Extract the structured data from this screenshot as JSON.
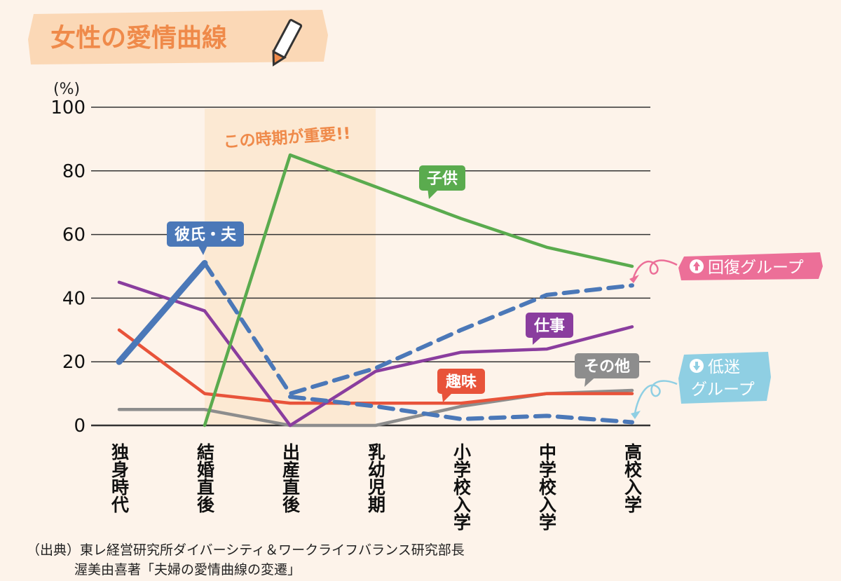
{
  "chart_data": {
    "type": "line",
    "title": "女性の愛情曲線",
    "y_unit": "(%)",
    "ylim": [
      0,
      100
    ],
    "y_ticks": [
      0,
      20,
      40,
      60,
      80,
      100
    ],
    "grid": true,
    "categories": [
      "独身時代",
      "結婚直後",
      "出産直後",
      "乳幼児期",
      "小学校入学",
      "中学校入学",
      "高校入学"
    ],
    "highlight": {
      "from": "結婚直後",
      "to": "乳幼児期",
      "label": "この時期が重要!!"
    },
    "series": [
      {
        "name": "子供",
        "color": "#5aab4e",
        "style": "solid",
        "values": [
          null,
          0,
          85,
          75,
          65,
          56,
          50
        ]
      },
      {
        "name": "彼氏・夫",
        "color": "#4b78b8",
        "style": "solid",
        "values": [
          20,
          51,
          null,
          null,
          null,
          null,
          null
        ]
      },
      {
        "name": "回復グループ",
        "color": "#4b78b8",
        "style": "dashed",
        "values": [
          null,
          51,
          10,
          18,
          30,
          41,
          44
        ]
      },
      {
        "name": "低迷グループ",
        "color": "#4b78b8",
        "style": "dashed",
        "values": [
          null,
          null,
          9,
          6,
          2,
          3,
          1
        ]
      },
      {
        "name": "仕事",
        "color": "#8a3d9e",
        "style": "solid",
        "values": [
          45,
          36,
          0,
          17,
          23,
          24,
          31
        ]
      },
      {
        "name": "趣味",
        "color": "#e8533a",
        "style": "solid",
        "values": [
          30,
          10,
          7,
          7,
          7,
          10,
          10
        ]
      },
      {
        "name": "その他",
        "color": "#8d8d8d",
        "style": "solid",
        "values": [
          5,
          5,
          0,
          0,
          6,
          10,
          11
        ]
      }
    ]
  },
  "colors": {
    "title_banner": "#fbd8b6",
    "title_text": "#ef8a4a",
    "highlight_band": "#fce9d3",
    "recovery_tag": "#ec6f98",
    "slump_tag": "#8fcfe3"
  },
  "labels": {
    "recovery_tag": "回復グループ",
    "slump_tag_line1": "低迷",
    "slump_tag_line2": "グループ"
  },
  "credit": {
    "line1": "（出典）東レ経営研究所ダイバーシティ＆ワークライフバランス研究部長",
    "line2": "渥美由喜著「夫婦の愛情曲線の変遷」"
  }
}
